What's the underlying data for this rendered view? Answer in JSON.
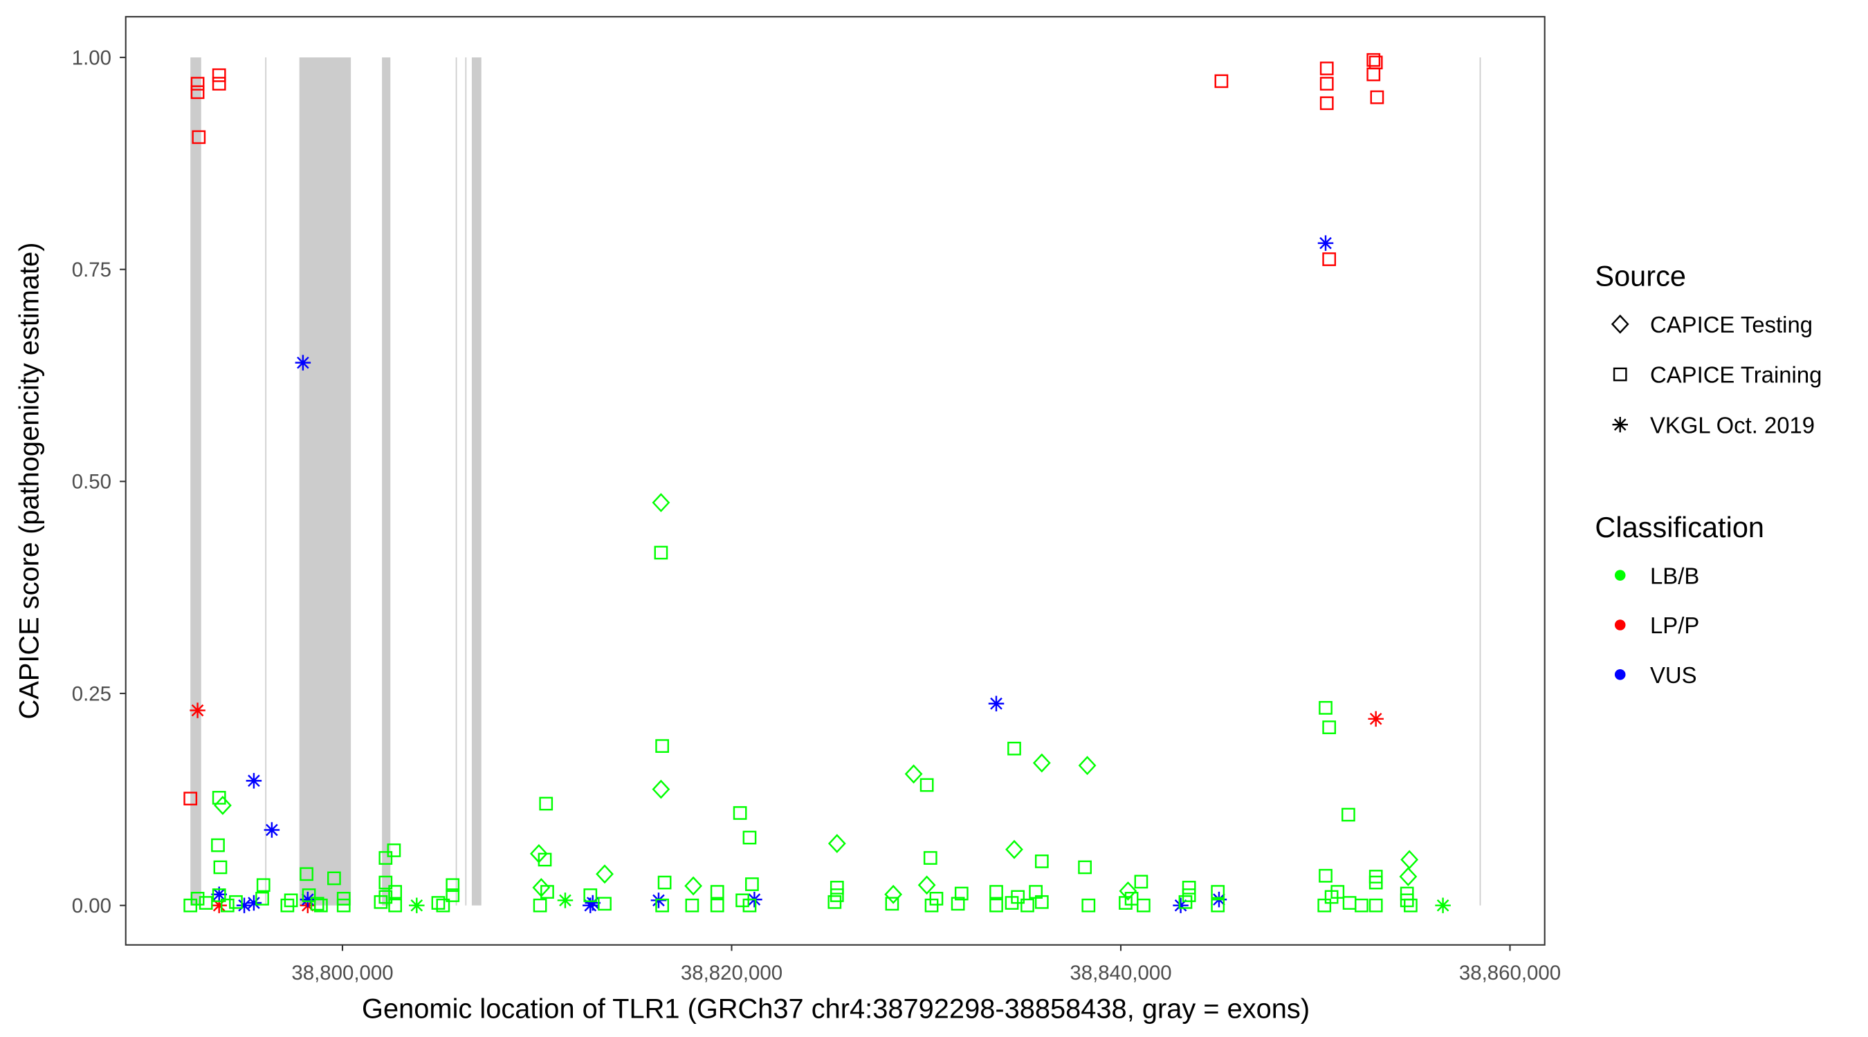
{
  "chart_data": {
    "type": "scatter",
    "xlabel": "Genomic location of TLR1 (GRCh37 chr4:38792298-38858438, gray = exons)",
    "ylabel": "CAPICE score (pathogenicity estimate)",
    "xlim": [
      38788900,
      38861800
    ],
    "ylim": [
      -0.046,
      1.048
    ],
    "x_ticks": [
      38800000,
      38820000,
      38840000,
      38860000
    ],
    "x_tick_labels": [
      "38,800,000",
      "38,820,000",
      "38,840,000",
      "38,860,000"
    ],
    "y_ticks": [
      0,
      0.25,
      0.5,
      0.75,
      1.0
    ],
    "y_tick_labels": [
      "0.00",
      "0.25",
      "0.50",
      "0.75",
      "1.00"
    ],
    "grid": false,
    "exons": [
      [
        38792185,
        38792738
      ],
      [
        38796030,
        38796090
      ],
      [
        38797785,
        38800431
      ],
      [
        38802031,
        38802462
      ],
      [
        38805820,
        38805870
      ],
      [
        38806310,
        38806360
      ],
      [
        38806646,
        38807138
      ],
      [
        38858440,
        38858490
      ]
    ],
    "exon_color": "#cccccc",
    "legend": {
      "placement": "right",
      "source_title": "Source",
      "sources": [
        {
          "label": "CAPICE Testing",
          "shape": "diamond"
        },
        {
          "label": "CAPICE Training",
          "shape": "square"
        },
        {
          "label": "VKGL Oct. 2019",
          "shape": "asterisk"
        }
      ],
      "class_title": "Classification",
      "classes": [
        {
          "label": "LB/B",
          "color": "#00ff00"
        },
        {
          "label": "LP/P",
          "color": "#ff0000"
        },
        {
          "label": "VUS",
          "color": "#0000ff"
        }
      ]
    },
    "series": [
      {
        "source": "CAPICE Training",
        "class": "LP/P",
        "points": [
          [
            38792554,
            0.969
          ],
          [
            38792554,
            0.959
          ],
          [
            38792615,
            0.906
          ],
          [
            38793661,
            0.979
          ],
          [
            38793661,
            0.969
          ],
          [
            38792185,
            0.126
          ],
          [
            38845170,
            0.972
          ],
          [
            38850586,
            0.987
          ],
          [
            38850586,
            0.969
          ],
          [
            38850586,
            0.946
          ],
          [
            38850709,
            0.762
          ],
          [
            38852986,
            0.997
          ],
          [
            38853109,
            0.994
          ],
          [
            38852986,
            0.98
          ],
          [
            38853170,
            0.953
          ]
        ]
      },
      {
        "source": "VKGL Oct. 2019",
        "class": "LP/P",
        "points": [
          [
            38792554,
            0.23
          ],
          [
            38853109,
            0.22
          ],
          [
            38793661,
            0.0
          ],
          [
            38798215,
            0.0
          ]
        ]
      },
      {
        "source": "VKGL Oct. 2019",
        "class": "VUS",
        "points": [
          [
            38797969,
            0.64
          ],
          [
            38850525,
            0.781
          ],
          [
            38833600,
            0.238
          ],
          [
            38795446,
            0.147
          ],
          [
            38796369,
            0.089
          ],
          [
            38793661,
            0.013
          ],
          [
            38794954,
            0.0
          ],
          [
            38795446,
            0.003
          ],
          [
            38798215,
            0.007
          ],
          [
            38812739,
            0.0
          ],
          [
            38812862,
            0.003
          ],
          [
            38816247,
            0.006
          ],
          [
            38821170,
            0.007
          ],
          [
            38843078,
            0.0
          ],
          [
            38845047,
            0.007
          ]
        ]
      },
      {
        "source": "VKGL Oct. 2019",
        "class": "LB/B",
        "points": [
          [
            38803815,
            0.0
          ],
          [
            38811447,
            0.006
          ],
          [
            38856555,
            0.0
          ]
        ]
      },
      {
        "source": "CAPICE Testing",
        "class": "LB/B",
        "points": [
          [
            38816370,
            0.475
          ],
          [
            38816370,
            0.137
          ],
          [
            38793846,
            0.118
          ],
          [
            38810093,
            0.061
          ],
          [
            38813477,
            0.037
          ],
          [
            38818031,
            0.023
          ],
          [
            38825416,
            0.073
          ],
          [
            38829355,
            0.155
          ],
          [
            38830031,
            0.024
          ],
          [
            38828308,
            0.013
          ],
          [
            38834524,
            0.066
          ],
          [
            38835940,
            0.168
          ],
          [
            38838278,
            0.165
          ],
          [
            38840370,
            0.017
          ],
          [
            38854832,
            0.054
          ],
          [
            38854770,
            0.034
          ],
          [
            38810216,
            0.021
          ]
        ]
      },
      {
        "source": "CAPICE Training",
        "class": "LB/B",
        "points": [
          [
            38816370,
            0.416
          ],
          [
            38816431,
            0.188
          ],
          [
            38810462,
            0.12
          ],
          [
            38793661,
            0.127
          ],
          [
            38793600,
            0.071
          ],
          [
            38793723,
            0.045
          ],
          [
            38820431,
            0.109
          ],
          [
            38820923,
            0.08
          ],
          [
            38830031,
            0.142
          ],
          [
            38830215,
            0.056
          ],
          [
            38834524,
            0.185
          ],
          [
            38835940,
            0.052
          ],
          [
            38838155,
            0.045
          ],
          [
            38850525,
            0.233
          ],
          [
            38850709,
            0.21
          ],
          [
            38851694,
            0.107
          ],
          [
            38850525,
            0.035
          ],
          [
            38802646,
            0.065
          ],
          [
            38802215,
            0.056
          ],
          [
            38802215,
            0.027
          ],
          [
            38798154,
            0.037
          ],
          [
            38799569,
            0.032
          ],
          [
            38795938,
            0.024
          ],
          [
            38805662,
            0.024
          ],
          [
            38810400,
            0.054
          ],
          [
            38816555,
            0.027
          ],
          [
            38821046,
            0.025
          ],
          [
            38841046,
            0.028
          ],
          [
            38853109,
            0.034
          ],
          [
            38853109,
            0.027
          ],
          [
            38825416,
            0.021
          ],
          [
            38843508,
            0.021
          ],
          [
            38792185,
            0.0
          ],
          [
            38792554,
            0.008
          ],
          [
            38792984,
            0.003
          ],
          [
            38793661,
            0.012
          ],
          [
            38794092,
            0.0
          ],
          [
            38794523,
            0.004
          ],
          [
            38795877,
            0.008
          ],
          [
            38797169,
            0.0
          ],
          [
            38797354,
            0.006
          ],
          [
            38798277,
            0.012
          ],
          [
            38798708,
            0.002
          ],
          [
            38798892,
            0.0
          ],
          [
            38800062,
            0.008
          ],
          [
            38800062,
            0.0
          ],
          [
            38801969,
            0.004
          ],
          [
            38802215,
            0.01
          ],
          [
            38802708,
            0.0
          ],
          [
            38802708,
            0.016
          ],
          [
            38804923,
            0.003
          ],
          [
            38805169,
            0.0
          ],
          [
            38805662,
            0.012
          ],
          [
            38810154,
            0.0
          ],
          [
            38810523,
            0.016
          ],
          [
            38812739,
            0.012
          ],
          [
            38813477,
            0.002
          ],
          [
            38816431,
            0.0
          ],
          [
            38817969,
            0.0
          ],
          [
            38819262,
            0.016
          ],
          [
            38819262,
            0.0
          ],
          [
            38820554,
            0.006
          ],
          [
            38820923,
            0.0
          ],
          [
            38825292,
            0.004
          ],
          [
            38825416,
            0.012
          ],
          [
            38828246,
            0.002
          ],
          [
            38830277,
            0.0
          ],
          [
            38830523,
            0.008
          ],
          [
            38831631,
            0.002
          ],
          [
            38831815,
            0.014
          ],
          [
            38833600,
            0.0
          ],
          [
            38833600,
            0.016
          ],
          [
            38834400,
            0.003
          ],
          [
            38834708,
            0.01
          ],
          [
            38835200,
            0.0
          ],
          [
            38835631,
            0.016
          ],
          [
            38835940,
            0.004
          ],
          [
            38838339,
            0.0
          ],
          [
            38840247,
            0.003
          ],
          [
            38840554,
            0.008
          ],
          [
            38841169,
            0.0
          ],
          [
            38843323,
            0.004
          ],
          [
            38843508,
            0.012
          ],
          [
            38844985,
            0.0
          ],
          [
            38844985,
            0.016
          ],
          [
            38850462,
            0.0
          ],
          [
            38850831,
            0.01
          ],
          [
            38851139,
            0.016
          ],
          [
            38851755,
            0.003
          ],
          [
            38852370,
            0.0
          ],
          [
            38853109,
            0.0
          ],
          [
            38854709,
            0.006
          ],
          [
            38854894,
            0.0
          ],
          [
            38854709,
            0.014
          ]
        ]
      }
    ]
  }
}
